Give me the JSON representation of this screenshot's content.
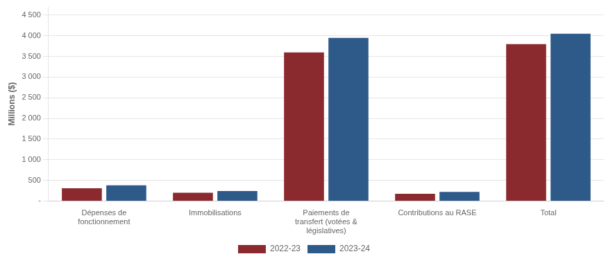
{
  "chart_data": {
    "type": "bar",
    "categories": [
      "Dépenses de\nfonctionnement",
      "Immobilisations",
      "Paiements de\ntransfert (votées &\nlégislatives)",
      "Contributions au RASE",
      "Total"
    ],
    "series": [
      {
        "name": "2022-23",
        "color": "#8B2A2E",
        "values": [
          310,
          200,
          3600,
          175,
          3800
        ]
      },
      {
        "name": "2023-24",
        "color": "#2E5A8A",
        "values": [
          380,
          240,
          3950,
          220,
          4050
        ]
      }
    ],
    "ylabel": "Millions ($)",
    "ylim": [
      0,
      4700
    ],
    "yticks": [
      {
        "value": 0,
        "label": "-"
      },
      500,
      {
        "value": 1000,
        "label": "1 000"
      },
      {
        "value": 1500,
        "label": "1 500"
      },
      {
        "value": 2000,
        "label": "2 000"
      },
      {
        "value": 2500,
        "label": "2 500"
      },
      {
        "value": 3000,
        "label": "3 000"
      },
      {
        "value": 3500,
        "label": "3 500"
      },
      {
        "value": 4000,
        "label": "4 000"
      },
      {
        "value": 4500,
        "label": "4 500"
      }
    ],
    "grid": true,
    "legend": "bottom"
  }
}
